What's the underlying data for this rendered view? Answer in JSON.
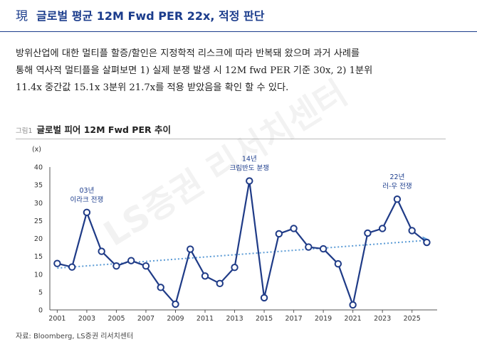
{
  "header": {
    "hanja": "現",
    "title": "글로벌 평균 12M Fwd PER 22x, 적정 판단"
  },
  "body_lines": [
    "방위산업에 대한 멀티플 할증/할인은 지정학적 리스크에 따라 반복돼 왔으며 과거 사례를",
    "통해 역사적 멀티플을 살펴보면 1) 실제 분쟁 발생 시 12M fwd PER 기준 30x, 2) 1분위",
    "11.4x 중간값 15.1x 3분위 21.7x를 적용 받았음을 확인 할 수 있다."
  ],
  "figure": {
    "label": "그림1",
    "title": "글로벌 피어 12M Fwd PER 추이",
    "source": "자료: Bloomberg, LS증권 리서치센터",
    "watermark": "LS증권 리서치센터"
  },
  "colors": {
    "series": "#1f3b87",
    "trend": "#5b9bd5",
    "accent": "#1b3c8c"
  },
  "chart_data": {
    "type": "line",
    "ylabel": "(x)",
    "ylim": [
      0,
      40
    ],
    "yticks": [
      0,
      5,
      10,
      15,
      20,
      25,
      30,
      35,
      40
    ],
    "xticks": [
      2001,
      2003,
      2005,
      2007,
      2009,
      2011,
      2013,
      2015,
      2017,
      2019,
      2021,
      2023,
      2025
    ],
    "xlim": [
      2000.5,
      2026.7
    ],
    "series": [
      {
        "x": [
          2001,
          2002,
          2003,
          2004,
          2005,
          2006,
          2007,
          2008,
          2009,
          2010,
          2011,
          2012,
          2013,
          2014,
          2015,
          2016,
          2017,
          2018,
          2019,
          2020,
          2021,
          2022,
          2023,
          2024,
          2025,
          2026
        ],
        "values": [
          13.0,
          12.0,
          27.3,
          16.4,
          12.3,
          13.8,
          12.3,
          6.3,
          1.6,
          17.0,
          9.5,
          7.4,
          11.9,
          36.1,
          3.4,
          21.3,
          22.8,
          17.6,
          17.1,
          12.9,
          1.4,
          21.5,
          22.8,
          31.0,
          22.2,
          18.9
        ]
      }
    ],
    "trendline": {
      "x": [
        2001,
        2026
      ],
      "values": [
        11.7,
        19.8
      ]
    },
    "annotations": [
      {
        "lines": [
          "03년",
          "이라크 전쟁"
        ],
        "x": 2003
      },
      {
        "lines": [
          "14년",
          "크림반도 분쟁"
        ],
        "x": 2014
      },
      {
        "lines": [
          "22년",
          "러-우 전쟁"
        ],
        "x": 2024
      }
    ]
  }
}
